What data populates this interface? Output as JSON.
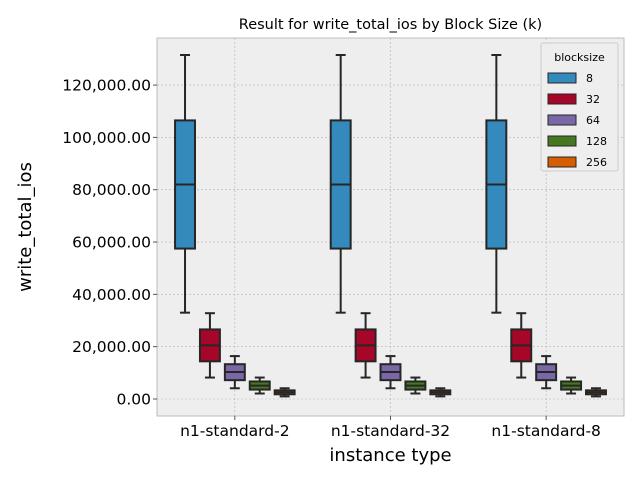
{
  "chart_data": {
    "type": "box",
    "title": "Result for write_total_ios by Block Size (k)",
    "xlabel": "instance type",
    "ylabel": "write_total_ios",
    "categories": [
      "n1-standard-2",
      "n1-standard-32",
      "n1-standard-8"
    ],
    "ylim": [
      -6500,
      138000
    ],
    "yticks": [
      0,
      20000,
      40000,
      60000,
      80000,
      100000,
      120000
    ],
    "ytick_labels": [
      "0.00",
      "20,000.00",
      "40,000.00",
      "60,000.00",
      "80,000.00",
      "100,000.00",
      "120,000.00"
    ],
    "grid": true,
    "legend": {
      "title": "blocksize",
      "position": "top-right"
    },
    "series": [
      {
        "name": "8",
        "color": "#348ABD",
        "stats": [
          {
            "whislo": 33000,
            "q1": 57500,
            "med": 82000,
            "q3": 106500,
            "whishi": 131500
          },
          {
            "whislo": 33000,
            "q1": 57500,
            "med": 82000,
            "q3": 106500,
            "whishi": 131500
          },
          {
            "whislo": 33000,
            "q1": 57500,
            "med": 82000,
            "q3": 106500,
            "whishi": 131500
          }
        ]
      },
      {
        "name": "32",
        "color": "#A60628",
        "stats": [
          {
            "whislo": 8200,
            "q1": 14400,
            "med": 20500,
            "q3": 26600,
            "whishi": 32800
          },
          {
            "whislo": 8200,
            "q1": 14400,
            "med": 20500,
            "q3": 26600,
            "whishi": 32800
          },
          {
            "whislo": 8200,
            "q1": 14400,
            "med": 20500,
            "q3": 26600,
            "whishi": 32800
          }
        ]
      },
      {
        "name": "64",
        "color": "#7A68A6",
        "stats": [
          {
            "whislo": 4100,
            "q1": 7200,
            "med": 10300,
            "q3": 13300,
            "whishi": 16400
          },
          {
            "whislo": 4100,
            "q1": 7200,
            "med": 10300,
            "q3": 13300,
            "whishi": 16400
          },
          {
            "whislo": 4100,
            "q1": 7200,
            "med": 10300,
            "q3": 13300,
            "whishi": 16400
          }
        ]
      },
      {
        "name": "128",
        "color": "#467821",
        "stats": [
          {
            "whislo": 2100,
            "q1": 3600,
            "med": 5100,
            "q3": 6700,
            "whishi": 8200
          },
          {
            "whislo": 2100,
            "q1": 3600,
            "med": 5100,
            "q3": 6700,
            "whishi": 8200
          },
          {
            "whislo": 2100,
            "q1": 3600,
            "med": 5100,
            "q3": 6700,
            "whishi": 8200
          }
        ]
      },
      {
        "name": "256",
        "color": "#D55E00",
        "stats": [
          {
            "whislo": 1000,
            "q1": 1800,
            "med": 2600,
            "q3": 3300,
            "whishi": 4100
          },
          {
            "whislo": 1000,
            "q1": 1800,
            "med": 2600,
            "q3": 3300,
            "whishi": 4100
          },
          {
            "whislo": 1000,
            "q1": 1800,
            "med": 2600,
            "q3": 3300,
            "whishi": 4100
          }
        ]
      }
    ],
    "colors": {
      "axes_bg": "#EEEEEE",
      "grid": "#B2B2B2",
      "box_edge": "#262626",
      "spine": "#BCBCBC"
    }
  }
}
